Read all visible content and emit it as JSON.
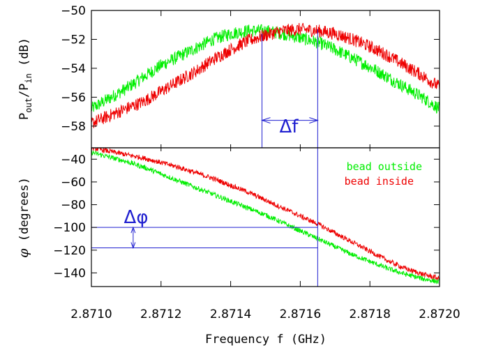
{
  "chart_data": [
    {
      "type": "line",
      "panel": "top",
      "ylabel": "P_out/P_in (dB)",
      "ylabel_parts": {
        "p1": "P",
        "s1": "out",
        "mid": "/P",
        "s2": "in",
        "unit": " (dB)"
      },
      "ylim": [
        -59.5,
        -50
      ],
      "xlim": [
        2.871,
        2.872
      ],
      "yticks": [
        -50,
        -52,
        -54,
        -56,
        -58
      ],
      "ytick_labels": [
        "−50",
        "−52",
        "−54",
        "−56",
        "−58"
      ],
      "series": [
        {
          "name": "bead outside",
          "color": "#00ee00",
          "x": [
            2.871,
            2.87105,
            2.8711,
            2.87115,
            2.8712,
            2.87125,
            2.8713,
            2.87135,
            2.8714,
            2.87145,
            2.8715,
            2.87155,
            2.8716,
            2.87165,
            2.8717,
            2.87175,
            2.8718,
            2.87185,
            2.8719,
            2.87195,
            2.872
          ],
          "y": [
            -56.8,
            -56.1,
            -55.4,
            -54.6,
            -53.8,
            -53.2,
            -52.6,
            -52.0,
            -51.6,
            -51.4,
            -51.4,
            -51.6,
            -51.9,
            -52.2,
            -52.7,
            -53.3,
            -53.9,
            -54.6,
            -55.3,
            -56.0,
            -56.8
          ]
        },
        {
          "name": "bead inside",
          "color": "#ee0000",
          "x": [
            2.871,
            2.87105,
            2.8711,
            2.87115,
            2.8712,
            2.87125,
            2.8713,
            2.87135,
            2.8714,
            2.87145,
            2.8715,
            2.87155,
            2.8716,
            2.87165,
            2.8717,
            2.87175,
            2.8718,
            2.87185,
            2.8719,
            2.87195,
            2.872
          ],
          "y": [
            -57.8,
            -57.3,
            -56.8,
            -56.3,
            -55.6,
            -54.9,
            -54.2,
            -53.4,
            -52.7,
            -52.1,
            -51.7,
            -51.4,
            -51.3,
            -51.4,
            -51.6,
            -52.0,
            -52.5,
            -53.1,
            -53.8,
            -54.5,
            -55.3
          ]
        }
      ],
      "annotation": {
        "label": "Δf",
        "x_from": 2.87149,
        "x_to": 2.87165,
        "arrow_y": -57.6,
        "label_y": -58.7
      }
    },
    {
      "type": "line",
      "panel": "bottom",
      "ylabel": "φ (degrees)",
      "ylabel_parts": {
        "phi": "φ",
        "rest": " (degrees)"
      },
      "ylim": [
        -152,
        -30
      ],
      "xlim": [
        2.871,
        2.872
      ],
      "yticks": [
        -40,
        -60,
        -80,
        -100,
        -120,
        -140
      ],
      "ytick_labels": [
        "−40",
        "−60",
        "−80",
        "−100",
        "−120",
        "−140"
      ],
      "xticks": [
        2.871,
        2.8712,
        2.8714,
        2.8716,
        2.8718,
        2.872
      ],
      "xtick_labels": [
        "2.8710",
        "2.8712",
        "2.8714",
        "2.8716",
        "2.8718",
        "2.8720"
      ],
      "xlabel": "Frequency f (GHz)",
      "series": [
        {
          "name": "bead outside",
          "color": "#00ee00",
          "x": [
            2.871,
            2.87105,
            2.8711,
            2.87115,
            2.8712,
            2.87125,
            2.8713,
            2.87135,
            2.8714,
            2.87145,
            2.8715,
            2.87155,
            2.8716,
            2.87165,
            2.8717,
            2.87175,
            2.8718,
            2.87185,
            2.8719,
            2.87195,
            2.872
          ],
          "y": [
            -34,
            -38,
            -42,
            -47,
            -53,
            -59,
            -65,
            -71,
            -77,
            -83,
            -89,
            -96,
            -103,
            -110,
            -117,
            -124,
            -130,
            -136,
            -141,
            -145,
            -148
          ]
        },
        {
          "name": "bead inside",
          "color": "#ee0000",
          "x": [
            2.871,
            2.87105,
            2.8711,
            2.87115,
            2.8712,
            2.87125,
            2.8713,
            2.87135,
            2.8714,
            2.87145,
            2.8715,
            2.87155,
            2.8716,
            2.87165,
            2.8717,
            2.87175,
            2.8718,
            2.87185,
            2.8719,
            2.87195,
            2.872
          ],
          "y": [
            -30,
            -33,
            -36,
            -39,
            -43,
            -47,
            -52,
            -57,
            -63,
            -69,
            -76,
            -83,
            -90,
            -97,
            -105,
            -113,
            -121,
            -129,
            -136,
            -141,
            -145
          ]
        }
      ],
      "annotation": {
        "label": "Δφ",
        "x_line_end": 2.87165,
        "y_from": -100,
        "y_to": -118,
        "arrow_x": 2.87112
      },
      "vline_x": 2.87165
    }
  ],
  "legend": {
    "placement": "top-right of bottom panel",
    "items": [
      {
        "label": "bead outside",
        "color": "#00ee00"
      },
      {
        "label": "bead inside",
        "color": "#ee0000"
      }
    ]
  },
  "colors": {
    "annotation": "#1f1fd0",
    "axis": "#000000"
  }
}
